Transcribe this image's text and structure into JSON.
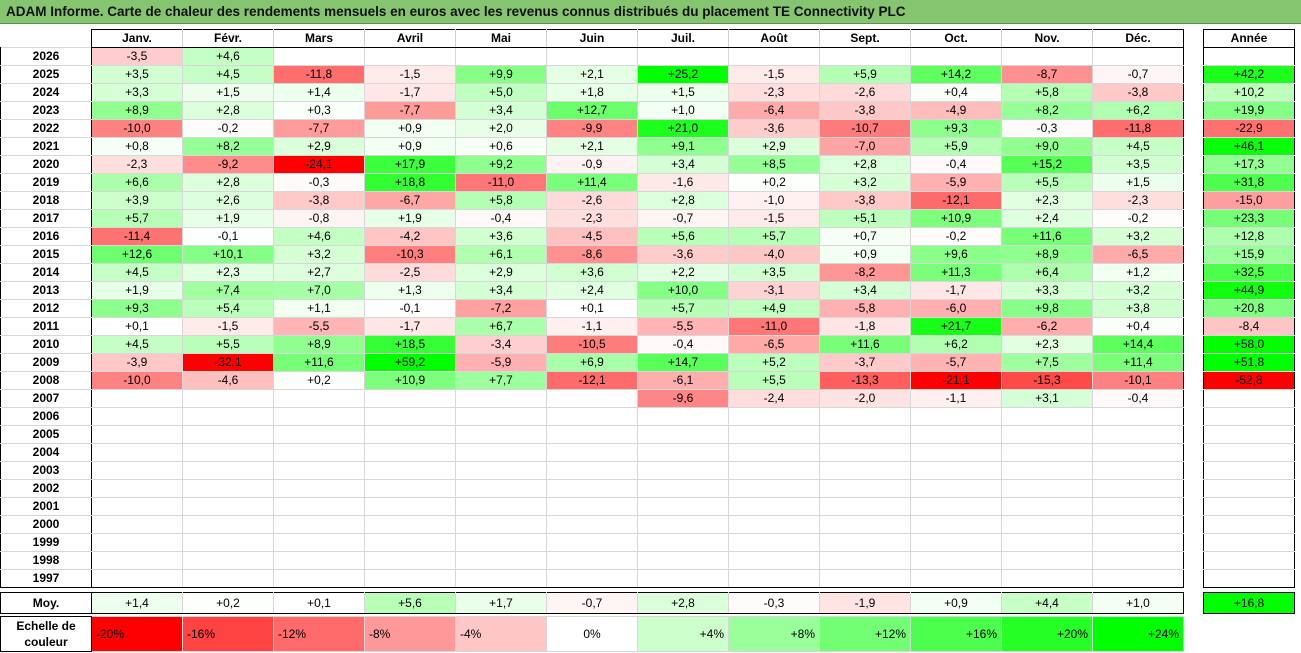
{
  "title": "ADAM Informe. Carte de chaleur des rendements mensuels en euros avec les revenus connus distribués du placement TE Connectivity PLC",
  "months": [
    "Janv.",
    "Févr.",
    "Mars",
    "Avril",
    "Mai",
    "Juin",
    "Juil.",
    "Août",
    "Sept.",
    "Oct.",
    "Nov.",
    "Déc."
  ],
  "year_header": "Année",
  "avg_label": "Moy.",
  "scale_label": "Echelle de couleur",
  "chart_data": {
    "type": "heatmap",
    "title": "ADAM Informe. Carte de chaleur des rendements mensuels en euros avec les revenus connus distribués du placement TE Connectivity PLC",
    "x": [
      "Janv.",
      "Févr.",
      "Mars",
      "Avril",
      "Mai",
      "Juin",
      "Juil.",
      "Août",
      "Sept.",
      "Oct.",
      "Nov.",
      "Déc.",
      "Année"
    ],
    "rows": [
      {
        "year": "2026",
        "values": [
          "-3,5",
          "+4,6",
          "",
          "",
          "",
          "",
          "",
          "",
          "",
          "",
          "",
          "",
          ""
        ]
      },
      {
        "year": "2025",
        "values": [
          "+3,5",
          "+4,5",
          "-11,8",
          "-1,5",
          "+9,9",
          "+2,1",
          "+25,2",
          "-1,5",
          "+5,9",
          "+14,2",
          "-8,7",
          "-0,7",
          "+42,2"
        ]
      },
      {
        "year": "2024",
        "values": [
          "+3,3",
          "+1,5",
          "+1,4",
          "-1,7",
          "+5,0",
          "+1,8",
          "+1,5",
          "-2,3",
          "-2,6",
          "+0,4",
          "+5,8",
          "-3,8",
          "+10,2"
        ]
      },
      {
        "year": "2023",
        "values": [
          "+8,9",
          "+2,8",
          "+0,3",
          "-7,7",
          "+3,4",
          "+12,7",
          "+1,0",
          "-6,4",
          "-3,8",
          "-4,9",
          "+8,2",
          "+6,2",
          "+19,9"
        ]
      },
      {
        "year": "2022",
        "values": [
          "-10,0",
          "-0,2",
          "-7,7",
          "+0,9",
          "+2,0",
          "-9,9",
          "+21,0",
          "-3,6",
          "-10,7",
          "+9,3",
          "-0,3",
          "-11,8",
          "-22,9"
        ]
      },
      {
        "year": "2021",
        "values": [
          "+0,8",
          "+8,2",
          "+2,9",
          "+0,9",
          "+0,6",
          "+2,1",
          "+9,1",
          "+2,9",
          "-7,0",
          "+5,9",
          "+9,0",
          "+4,5",
          "+46,1"
        ]
      },
      {
        "year": "2020",
        "values": [
          "-2,3",
          "-9,2",
          "-24,1",
          "+17,9",
          "+9,2",
          "-0,9",
          "+3,4",
          "+8,5",
          "+2,8",
          "-0,4",
          "+15,2",
          "+3,5",
          "+17,3"
        ]
      },
      {
        "year": "2019",
        "values": [
          "+6,6",
          "+2,8",
          "-0,3",
          "+18,8",
          "-11,0",
          "+11,4",
          "-1,6",
          "+0,2",
          "+3,2",
          "-5,9",
          "+5,5",
          "+1,5",
          "+31,8"
        ]
      },
      {
        "year": "2018",
        "values": [
          "+3,9",
          "+2,6",
          "-3,8",
          "-6,7",
          "+5,8",
          "-2,6",
          "+2,8",
          "-1,0",
          "-3,8",
          "-12,1",
          "+2,3",
          "-2,3",
          "-15,0"
        ]
      },
      {
        "year": "2017",
        "values": [
          "+5,7",
          "+1,9",
          "-0,8",
          "+1,9",
          "-0,4",
          "-2,3",
          "-0,7",
          "-1,5",
          "+5,1",
          "+10,9",
          "+2,4",
          "-0,2",
          "+23,3"
        ]
      },
      {
        "year": "2016",
        "values": [
          "-11,4",
          "-0,1",
          "+4,6",
          "-4,2",
          "+3,6",
          "-4,5",
          "+5,6",
          "+5,7",
          "+0,7",
          "-0,2",
          "+11,6",
          "+3,2",
          "+12,8"
        ]
      },
      {
        "year": "2015",
        "values": [
          "+12,6",
          "+10,1",
          "+3,2",
          "-10,3",
          "+6,1",
          "-8,6",
          "-3,6",
          "-4,0",
          "+0,9",
          "+9,6",
          "+8,9",
          "-6,5",
          "+15,9"
        ]
      },
      {
        "year": "2014",
        "values": [
          "+4,5",
          "+2,3",
          "+2,7",
          "-2,5",
          "+2,9",
          "+3,6",
          "+2,2",
          "+3,5",
          "-8,2",
          "+11,3",
          "+6,4",
          "+1,2",
          "+32,5"
        ]
      },
      {
        "year": "2013",
        "values": [
          "+1,9",
          "+7,4",
          "+7,0",
          "+1,3",
          "+3,4",
          "+2,4",
          "+10,0",
          "-3,1",
          "+3,4",
          "-1,7",
          "+3,3",
          "+3,2",
          "+44,9"
        ]
      },
      {
        "year": "2012",
        "values": [
          "+9,3",
          "+5,4",
          "+1,1",
          "-0,1",
          "-7,2",
          "+0,1",
          "+5,7",
          "+4,9",
          "-5,8",
          "-6,0",
          "+9,8",
          "+3,8",
          "+20,8"
        ]
      },
      {
        "year": "2011",
        "values": [
          "+0,1",
          "-1,5",
          "-5,5",
          "-1,7",
          "+6,7",
          "-1,1",
          "-5,5",
          "-11,0",
          "-1,8",
          "+21,7",
          "-6,2",
          "+0,4",
          "-8,4"
        ]
      },
      {
        "year": "2010",
        "values": [
          "+4,5",
          "+5,5",
          "+8,9",
          "+18,5",
          "-3,4",
          "-10,5",
          "-0,4",
          "-6,5",
          "+11,6",
          "+6,2",
          "+2,3",
          "+14,4",
          "+58,0"
        ]
      },
      {
        "year": "2009",
        "values": [
          "-3,9",
          "-32,1",
          "+11,6",
          "+59,2",
          "-5,9",
          "+6,9",
          "+14,7",
          "+5,2",
          "-3,7",
          "-5,7",
          "+7,5",
          "+11,4",
          "+51,8"
        ]
      },
      {
        "year": "2008",
        "values": [
          "-10,0",
          "-4,6",
          "+0,2",
          "+10,9",
          "+7,7",
          "-12,1",
          "-6,1",
          "+5,5",
          "-13,3",
          "-21,1",
          "-15,3",
          "-10,1",
          "-52,8"
        ]
      },
      {
        "year": "2007",
        "values": [
          "",
          "",
          "",
          "",
          "",
          "",
          "-9,6",
          "-2,4",
          "-2,0",
          "-1,1",
          "+3,1",
          "-0,4",
          ""
        ]
      },
      {
        "year": "2006",
        "values": [
          "",
          "",
          "",
          "",
          "",
          "",
          "",
          "",
          "",
          "",
          "",
          "",
          ""
        ]
      },
      {
        "year": "2005",
        "values": [
          "",
          "",
          "",
          "",
          "",
          "",
          "",
          "",
          "",
          "",
          "",
          "",
          ""
        ]
      },
      {
        "year": "2004",
        "values": [
          "",
          "",
          "",
          "",
          "",
          "",
          "",
          "",
          "",
          "",
          "",
          "",
          ""
        ]
      },
      {
        "year": "2003",
        "values": [
          "",
          "",
          "",
          "",
          "",
          "",
          "",
          "",
          "",
          "",
          "",
          "",
          ""
        ]
      },
      {
        "year": "2002",
        "values": [
          "",
          "",
          "",
          "",
          "",
          "",
          "",
          "",
          "",
          "",
          "",
          "",
          ""
        ]
      },
      {
        "year": "2001",
        "values": [
          "",
          "",
          "",
          "",
          "",
          "",
          "",
          "",
          "",
          "",
          "",
          "",
          ""
        ]
      },
      {
        "year": "2000",
        "values": [
          "",
          "",
          "",
          "",
          "",
          "",
          "",
          "",
          "",
          "",
          "",
          "",
          ""
        ]
      },
      {
        "year": "1999",
        "values": [
          "",
          "",
          "",
          "",
          "",
          "",
          "",
          "",
          "",
          "",
          "",
          "",
          ""
        ]
      },
      {
        "year": "1998",
        "values": [
          "",
          "",
          "",
          "",
          "",
          "",
          "",
          "",
          "",
          "",
          "",
          "",
          ""
        ]
      },
      {
        "year": "1997",
        "values": [
          "",
          "",
          "",
          "",
          "",
          "",
          "",
          "",
          "",
          "",
          "",
          "",
          ""
        ]
      }
    ],
    "averages": [
      "+1,4",
      "+0,2",
      "+0,1",
      "+5,6",
      "+1,7",
      "-0,7",
      "+2,8",
      "-0,3",
      "-1,9",
      "+0,9",
      "+4,4",
      "+1,0",
      "+16,8"
    ],
    "color_scale": [
      {
        "label": "-20%",
        "value": -20,
        "color": "#ff0000"
      },
      {
        "label": "-16%",
        "value": -16,
        "color": "#ff4343"
      },
      {
        "label": "-12%",
        "value": -12,
        "color": "#ff6b6b"
      },
      {
        "label": "-8%",
        "value": -8,
        "color": "#ff9898"
      },
      {
        "label": "-4%",
        "value": -4,
        "color": "#ffc6c6"
      },
      {
        "label": "0%",
        "value": 0,
        "color": "#ffffff"
      },
      {
        "label": "+4%",
        "value": 4,
        "color": "#ccffcc"
      },
      {
        "label": "+8%",
        "value": 8,
        "color": "#99ff99"
      },
      {
        "label": "+12%",
        "value": 12,
        "color": "#73ff73"
      },
      {
        "label": "+16%",
        "value": 16,
        "color": "#4dff4d"
      },
      {
        "label": "+20%",
        "value": 20,
        "color": "#26ff26"
      },
      {
        "label": "+24%",
        "value": 24,
        "color": "#00ff00"
      }
    ]
  }
}
